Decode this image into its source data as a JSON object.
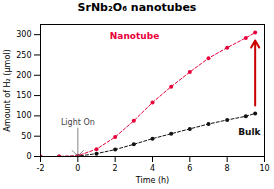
{
  "chart_data": {
    "type": "line",
    "title": "SrNb₂O₆ nanotubes",
    "xlabel": "Time (h)",
    "ylabel": "Amount of H₂ (μmol)",
    "x": [
      -2,
      -1,
      0,
      1,
      2,
      3,
      4,
      5,
      6,
      7,
      8,
      9,
      9.5
    ],
    "series": [
      {
        "name": "Bulk",
        "color": "#111111",
        "marker": "circle",
        "line_style": "dashed",
        "values": [
          0,
          0,
          1,
          7,
          17,
          30,
          44,
          56,
          68,
          80,
          90,
          99,
          106
        ]
      },
      {
        "name": "Nanotube",
        "color": "#e8003a",
        "marker": "circle",
        "line_style": "dashed",
        "values": [
          0,
          0,
          2,
          18,
          48,
          88,
          133,
          172,
          208,
          242,
          268,
          292,
          305
        ]
      }
    ],
    "annotations": [
      {
        "text": "Light On",
        "x": 0,
        "y": 1
      }
    ],
    "xlim": [
      -2,
      10
    ],
    "ylim": [
      0,
      325
    ],
    "xticks": [
      -2,
      0,
      2,
      4,
      6,
      8,
      10
    ],
    "yticks": [
      0,
      50,
      100,
      150,
      200,
      250,
      300
    ]
  }
}
